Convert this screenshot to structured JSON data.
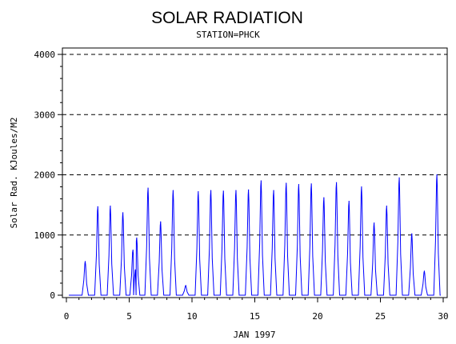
{
  "chart_data": {
    "type": "line",
    "title": "SOLAR RADIATION",
    "subtitle": "STATION=PHCK",
    "xlabel": "JAN 1997",
    "ylabel": "Solar Rad. KJoules/M2",
    "xlim": [
      0,
      30
    ],
    "ylim": [
      0,
      4000
    ],
    "x_ticks": [
      0,
      5,
      10,
      15,
      20,
      25,
      30
    ],
    "y_ticks": [
      0,
      1000,
      2000,
      3000,
      4000
    ],
    "grid": "dashed horizontal lines at major y ticks",
    "series": [
      {
        "color": "#0000ff",
        "daily_peaks": [
          {
            "day": 1.5,
            "value": 560
          },
          {
            "day": 2.5,
            "value": 1470
          },
          {
            "day": 3.5,
            "value": 1480
          },
          {
            "day": 4.5,
            "value": 1370
          },
          {
            "day": 5.3,
            "value": 750
          },
          {
            "day": 5.6,
            "value": 950
          },
          {
            "day": 6.5,
            "value": 1780
          },
          {
            "day": 7.5,
            "value": 1220
          },
          {
            "day": 8.5,
            "value": 1740
          },
          {
            "day": 9.5,
            "value": 160
          },
          {
            "day": 10.5,
            "value": 1720
          },
          {
            "day": 11.5,
            "value": 1740
          },
          {
            "day": 12.5,
            "value": 1730
          },
          {
            "day": 13.5,
            "value": 1740
          },
          {
            "day": 14.5,
            "value": 1750
          },
          {
            "day": 15.5,
            "value": 1900
          },
          {
            "day": 16.5,
            "value": 1740
          },
          {
            "day": 17.5,
            "value": 1860
          },
          {
            "day": 18.5,
            "value": 1840
          },
          {
            "day": 19.5,
            "value": 1850
          },
          {
            "day": 20.5,
            "value": 1620
          },
          {
            "day": 21.5,
            "value": 1870
          },
          {
            "day": 22.5,
            "value": 1560
          },
          {
            "day": 23.5,
            "value": 1800
          },
          {
            "day": 24.5,
            "value": 1200
          },
          {
            "day": 25.5,
            "value": 1480
          },
          {
            "day": 26.5,
            "value": 1950
          },
          {
            "day": 27.5,
            "value": 1020
          },
          {
            "day": 28.5,
            "value": 400
          },
          {
            "day": 29.5,
            "value": 2000
          }
        ]
      }
    ]
  }
}
